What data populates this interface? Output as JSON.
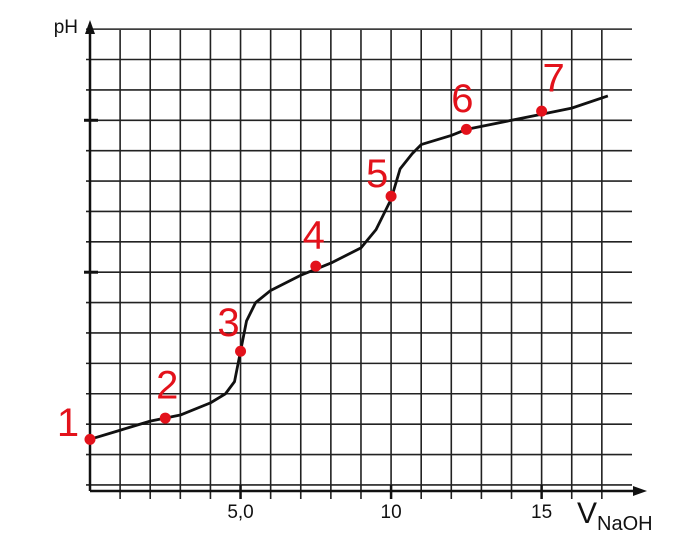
{
  "chart_data": {
    "type": "line",
    "y_label": "pH",
    "x_label": {
      "main": "V",
      "sub": "NaOH"
    },
    "xlim": [
      0,
      18.5
    ],
    "ylim": [
      -0.2,
      15.3
    ],
    "xticks": [
      {
        "value": 5,
        "label": "5,0"
      },
      10,
      15
    ],
    "yticks": [
      7,
      12
    ],
    "grid": true,
    "grid_step": 1,
    "series": [
      {
        "color": "#111111",
        "x": [
          0,
          1,
          2,
          3,
          4,
          4.5,
          4.8,
          5,
          5.2,
          5.5,
          6,
          7,
          7.5,
          8,
          9,
          9.5,
          9.8,
          10,
          10.3,
          10.7,
          11,
          12,
          12.5,
          13,
          14,
          15,
          16,
          17.2
        ],
        "values": [
          1.5,
          1.8,
          2.1,
          2.3,
          2.7,
          3.0,
          3.4,
          4.4,
          5.4,
          6.0,
          6.4,
          6.9,
          7.1,
          7.3,
          7.8,
          8.4,
          9.0,
          9.4,
          10.4,
          10.9,
          11.2,
          11.5,
          11.7,
          11.8,
          12.0,
          12.2,
          12.4,
          12.8
        ]
      }
    ],
    "points": {
      "color": "#e3121b",
      "labels": [
        "1",
        "2",
        "3",
        "4",
        "5",
        "6",
        "7"
      ],
      "x": [
        0,
        2.5,
        5,
        7.5,
        10,
        12.5,
        15
      ],
      "values": [
        1.5,
        2.2,
        4.4,
        7.2,
        9.5,
        11.7,
        12.3
      ]
    }
  }
}
